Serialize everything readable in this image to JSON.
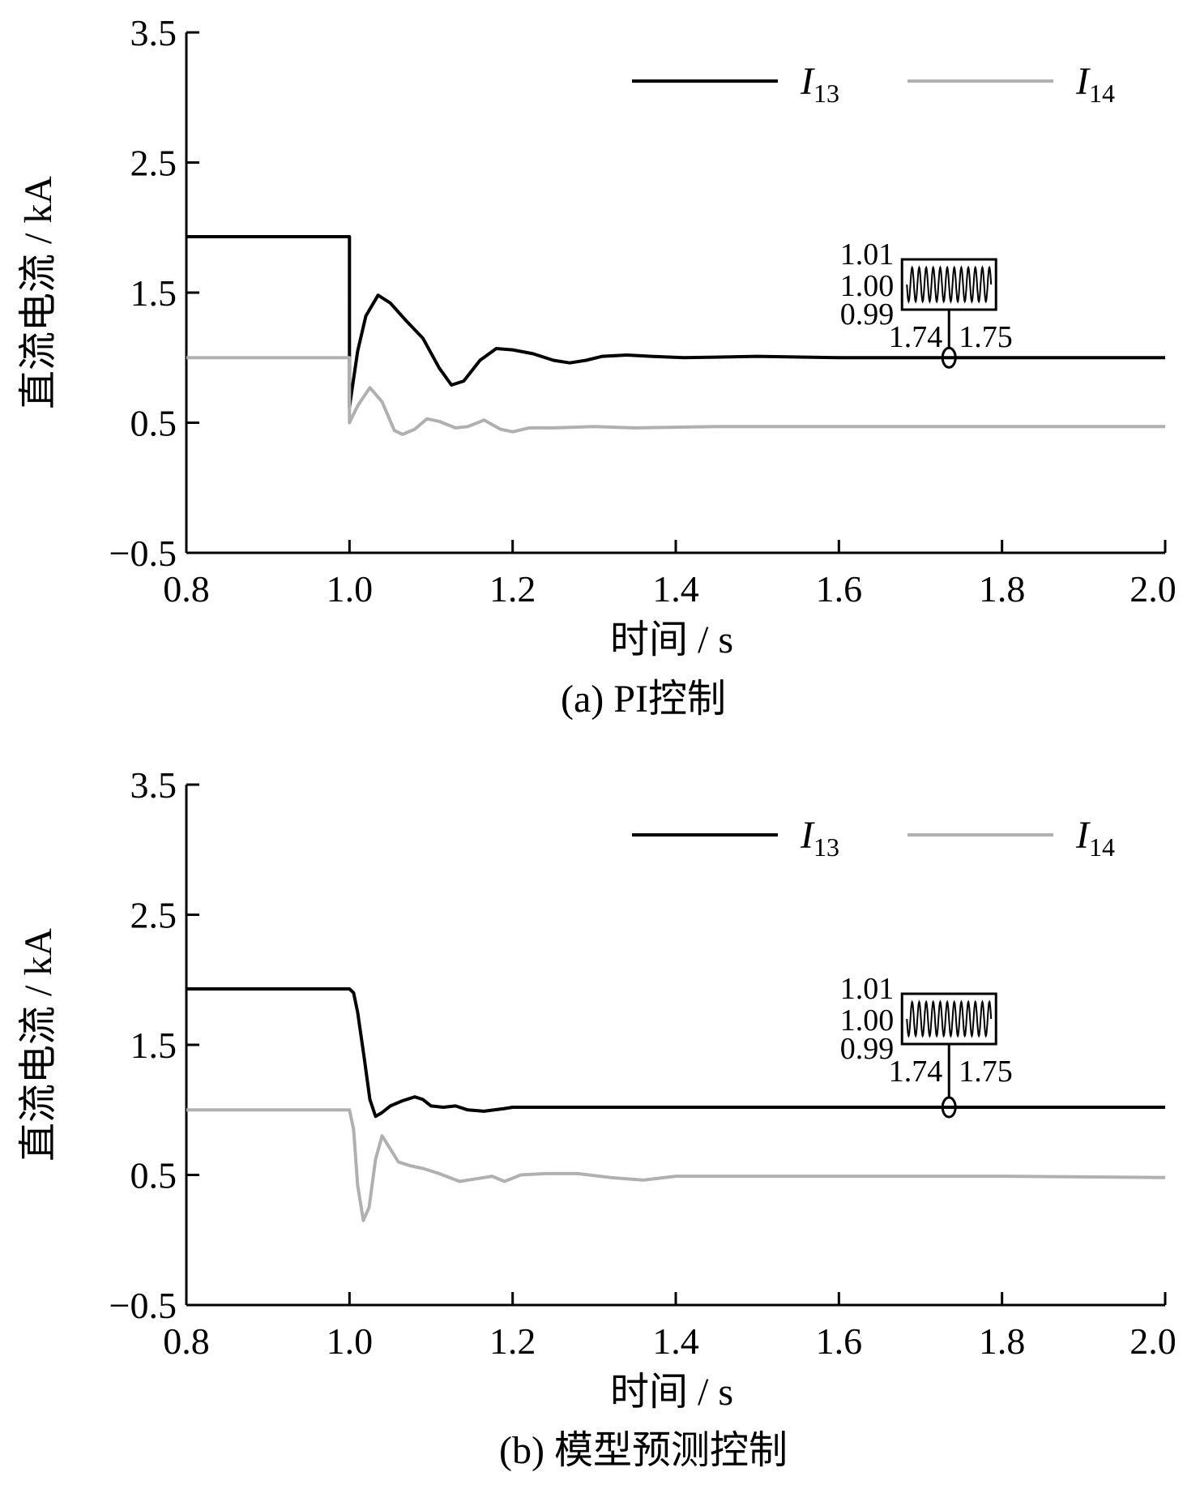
{
  "chart_data": [
    {
      "type": "line",
      "caption": "(a)  PI控制",
      "xlabel": "时间 / s",
      "ylabel": "直流电流 / kA",
      "xlim": [
        0.8,
        2.0
      ],
      "ylim": [
        -0.5,
        3.5
      ],
      "xticks": [
        "0.8",
        "1.0",
        "1.2",
        "1.4",
        "1.6",
        "1.8",
        "2.0"
      ],
      "yticks": [
        "−0.5",
        "0.5",
        "1.5",
        "2.5",
        "3.5"
      ],
      "grid": false,
      "legend_position": "top-right",
      "series": [
        {
          "name": "I13",
          "legend_main": "I",
          "legend_sub": "13",
          "color": "#000000",
          "points": [
            [
              0.8,
              1.93
            ],
            [
              1.0,
              1.93
            ],
            [
              1.0,
              0.62
            ],
            [
              1.01,
              1.05
            ],
            [
              1.02,
              1.32
            ],
            [
              1.035,
              1.48
            ],
            [
              1.05,
              1.42
            ],
            [
              1.07,
              1.28
            ],
            [
              1.09,
              1.15
            ],
            [
              1.11,
              0.92
            ],
            [
              1.125,
              0.79
            ],
            [
              1.14,
              0.82
            ],
            [
              1.16,
              0.98
            ],
            [
              1.18,
              1.07
            ],
            [
              1.2,
              1.06
            ],
            [
              1.225,
              1.03
            ],
            [
              1.25,
              0.98
            ],
            [
              1.27,
              0.96
            ],
            [
              1.29,
              0.98
            ],
            [
              1.31,
              1.01
            ],
            [
              1.34,
              1.02
            ],
            [
              1.37,
              1.01
            ],
            [
              1.41,
              1.0
            ],
            [
              1.5,
              1.01
            ],
            [
              1.6,
              1.0
            ],
            [
              1.7,
              1.0
            ],
            [
              1.8,
              1.0
            ],
            [
              1.9,
              1.0
            ],
            [
              2.0,
              1.0
            ]
          ]
        },
        {
          "name": "I14",
          "legend_main": "I",
          "legend_sub": "14",
          "color": "#b0b0b0",
          "points": [
            [
              0.8,
              1.0
            ],
            [
              1.0,
              1.0
            ],
            [
              1.0,
              0.5
            ],
            [
              1.01,
              0.63
            ],
            [
              1.025,
              0.77
            ],
            [
              1.04,
              0.66
            ],
            [
              1.055,
              0.44
            ],
            [
              1.065,
              0.41
            ],
            [
              1.08,
              0.45
            ],
            [
              1.095,
              0.53
            ],
            [
              1.11,
              0.51
            ],
            [
              1.13,
              0.46
            ],
            [
              1.145,
              0.47
            ],
            [
              1.165,
              0.52
            ],
            [
              1.185,
              0.45
            ],
            [
              1.2,
              0.43
            ],
            [
              1.22,
              0.46
            ],
            [
              1.25,
              0.46
            ],
            [
              1.3,
              0.47
            ],
            [
              1.35,
              0.46
            ],
            [
              1.45,
              0.47
            ],
            [
              1.6,
              0.47
            ],
            [
              1.8,
              0.47
            ],
            [
              2.0,
              0.47
            ]
          ]
        }
      ],
      "inset": {
        "ytick_labels": [
          "1.01",
          "1.00",
          "0.99"
        ],
        "xtick_labels": [
          "1.74",
          "1.75"
        ],
        "marker_x": 1.735,
        "marker_y": 1.0,
        "cycles": 12
      }
    },
    {
      "type": "line",
      "caption": "(b)  模型预测控制",
      "xlabel": "时间 / s",
      "ylabel": "直流电流 / kA",
      "xlim": [
        0.8,
        2.0
      ],
      "ylim": [
        -0.5,
        3.5
      ],
      "xticks": [
        "0.8",
        "1.0",
        "1.2",
        "1.4",
        "1.6",
        "1.8",
        "2.0"
      ],
      "yticks": [
        "−0.5",
        "0.5",
        "1.5",
        "2.5",
        "3.5"
      ],
      "grid": false,
      "legend_position": "top-right",
      "series": [
        {
          "name": "I13",
          "legend_main": "I",
          "legend_sub": "13",
          "color": "#000000",
          "points": [
            [
              0.8,
              1.93
            ],
            [
              1.0,
              1.93
            ],
            [
              1.005,
              1.9
            ],
            [
              1.01,
              1.75
            ],
            [
              1.018,
              1.4
            ],
            [
              1.025,
              1.08
            ],
            [
              1.032,
              0.95
            ],
            [
              1.04,
              0.98
            ],
            [
              1.05,
              1.03
            ],
            [
              1.065,
              1.07
            ],
            [
              1.08,
              1.1
            ],
            [
              1.09,
              1.08
            ],
            [
              1.1,
              1.03
            ],
            [
              1.115,
              1.02
            ],
            [
              1.13,
              1.03
            ],
            [
              1.145,
              1.0
            ],
            [
              1.165,
              0.99
            ],
            [
              1.19,
              1.01
            ],
            [
              1.2,
              1.02
            ],
            [
              1.3,
              1.02
            ],
            [
              1.5,
              1.02
            ],
            [
              1.7,
              1.02
            ],
            [
              1.9,
              1.02
            ],
            [
              2.0,
              1.02
            ]
          ]
        },
        {
          "name": "I14",
          "legend_main": "I",
          "legend_sub": "14",
          "color": "#b0b0b0",
          "points": [
            [
              0.8,
              1.0
            ],
            [
              1.0,
              1.0
            ],
            [
              1.005,
              0.85
            ],
            [
              1.01,
              0.42
            ],
            [
              1.017,
              0.15
            ],
            [
              1.024,
              0.25
            ],
            [
              1.032,
              0.62
            ],
            [
              1.04,
              0.8
            ],
            [
              1.048,
              0.72
            ],
            [
              1.06,
              0.6
            ],
            [
              1.075,
              0.57
            ],
            [
              1.09,
              0.55
            ],
            [
              1.11,
              0.51
            ],
            [
              1.135,
              0.45
            ],
            [
              1.155,
              0.47
            ],
            [
              1.175,
              0.49
            ],
            [
              1.19,
              0.45
            ],
            [
              1.21,
              0.5
            ],
            [
              1.24,
              0.51
            ],
            [
              1.28,
              0.51
            ],
            [
              1.32,
              0.48
            ],
            [
              1.36,
              0.46
            ],
            [
              1.4,
              0.49
            ],
            [
              1.5,
              0.49
            ],
            [
              1.6,
              0.49
            ],
            [
              1.8,
              0.49
            ],
            [
              2.0,
              0.48
            ]
          ]
        }
      ],
      "inset": {
        "ytick_labels": [
          "1.01",
          "1.00",
          "0.99"
        ],
        "xtick_labels": [
          "1.74",
          "1.75"
        ],
        "marker_x": 1.735,
        "marker_y": 1.02,
        "cycles": 12
      }
    }
  ]
}
